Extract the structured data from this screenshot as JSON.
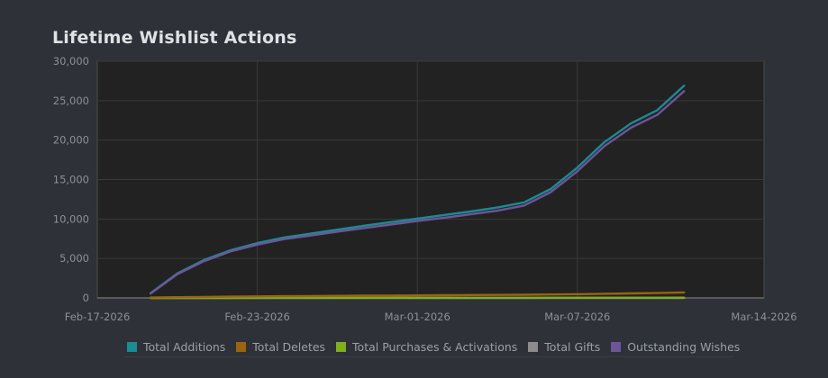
{
  "header": {
    "title": "Lifetime Wishlist Actions"
  },
  "colors": {
    "background": "#2e3138",
    "plot_background": "#222222",
    "grid": "#3a3a3a",
    "axis_text": "#8c9097"
  },
  "legend": [
    {
      "label": "Total Additions",
      "color": "#1a8c94"
    },
    {
      "label": "Total Deletes",
      "color": "#9a6410"
    },
    {
      "label": "Total Purchases & Activations",
      "color": "#7fae1e"
    },
    {
      "label": "Total Gifts",
      "color": "#8c8c8c"
    },
    {
      "label": "Outstanding Wishes",
      "color": "#6e5598"
    }
  ],
  "chart_data": {
    "type": "line",
    "title": "Lifetime Wishlist Actions",
    "xlabel": "",
    "ylabel": "",
    "x_domain": [
      0,
      25
    ],
    "ylim": [
      0,
      30000
    ],
    "grid": true,
    "legend_position": "bottom",
    "y_ticks": [
      {
        "value": 0,
        "label": "0"
      },
      {
        "value": 5000,
        "label": "5,000"
      },
      {
        "value": 10000,
        "label": "10,000"
      },
      {
        "value": 15000,
        "label": "15,000"
      },
      {
        "value": 20000,
        "label": "20,000"
      },
      {
        "value": 25000,
        "label": "25,000"
      },
      {
        "value": 30000,
        "label": "30,000"
      }
    ],
    "x_ticks": [
      {
        "value": 0,
        "label": "Feb-17-2026"
      },
      {
        "value": 6,
        "label": "Feb-23-2026"
      },
      {
        "value": 12,
        "label": "Mar-01-2026"
      },
      {
        "value": 18,
        "label": "Mar-07-2026"
      },
      {
        "value": 25,
        "label": "Mar-14-2026"
      }
    ],
    "x": [
      2,
      3,
      4,
      5,
      6,
      7,
      8,
      9,
      10,
      11,
      12,
      13,
      14,
      15,
      16,
      17,
      18,
      19,
      20,
      21,
      22
    ],
    "series": [
      {
        "name": "Total Additions",
        "color": "#1a8c94",
        "values": [
          600,
          3100,
          4800,
          6050,
          6950,
          7650,
          8150,
          8650,
          9150,
          9600,
          10050,
          10500,
          10950,
          11450,
          12100,
          13800,
          16500,
          19700,
          22100,
          23800,
          26900
        ]
      },
      {
        "name": "Total Deletes",
        "color": "#9a6410",
        "values": [
          50,
          90,
          130,
          160,
          190,
          220,
          240,
          260,
          280,
          300,
          320,
          340,
          360,
          380,
          400,
          430,
          470,
          520,
          570,
          620,
          700
        ]
      },
      {
        "name": "Total Purchases & Activations",
        "color": "#7fae1e",
        "values": [
          0,
          2,
          4,
          5,
          6,
          7,
          8,
          9,
          10,
          11,
          12,
          13,
          14,
          15,
          16,
          18,
          20,
          22,
          24,
          26,
          30
        ]
      },
      {
        "name": "Total Gifts",
        "color": "#8c8c8c",
        "values": [
          0,
          0,
          0,
          0,
          1,
          1,
          1,
          1,
          1,
          2,
          2,
          2,
          2,
          2,
          2,
          3,
          3,
          3,
          3,
          3,
          4
        ]
      },
      {
        "name": "Outstanding Wishes",
        "color": "#6e5598",
        "values": [
          550,
          3000,
          4650,
          5900,
          6750,
          7450,
          7900,
          8400,
          8850,
          9300,
          9750,
          10150,
          10600,
          11050,
          11700,
          13400,
          16050,
          19200,
          21550,
          23200,
          26200
        ]
      }
    ]
  }
}
